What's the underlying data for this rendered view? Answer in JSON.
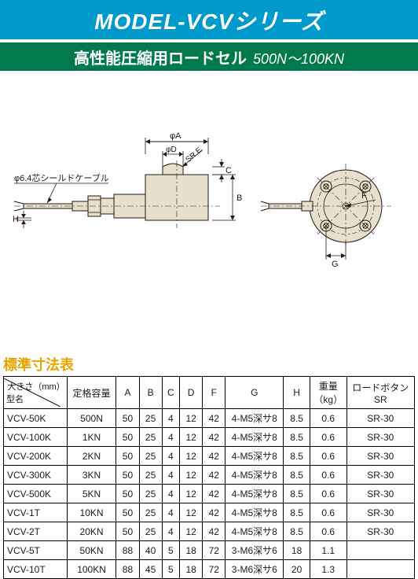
{
  "title": "MODEL-VCVシリーズ",
  "subtitle_main": "高性能圧縮用ロードセル",
  "subtitle_range": "500N〜100KN",
  "section_title": "標準寸法表",
  "diagram": {
    "cable_label": "φ6.4芯シールドケーブル",
    "dims": {
      "A": "φA",
      "D": "φD",
      "E": "SR.E",
      "C": "C",
      "B": "B",
      "H": "H",
      "F": "F",
      "G": "G"
    },
    "body_fill": "#e6e0cc",
    "body_stroke": "#231815"
  },
  "table": {
    "header_diag_top": "大きさ（mm）",
    "header_diag_bot": "型名",
    "columns": [
      "定格容量",
      "A",
      "B",
      "C",
      "D",
      "F",
      "G",
      "H",
      "重量\n（kg）",
      "ロードボタン\nSR"
    ],
    "rows": [
      [
        "VCV-50K",
        "500N",
        "50",
        "25",
        "4",
        "12",
        "42",
        "4-M5深サ8",
        "8.5",
        "0.6",
        "SR-30"
      ],
      [
        "VCV-100K",
        "1KN",
        "50",
        "25",
        "4",
        "12",
        "42",
        "4-M5深サ8",
        "8.5",
        "0.6",
        "SR-30"
      ],
      [
        "VCV-200K",
        "2KN",
        "50",
        "25",
        "4",
        "12",
        "42",
        "4-M5深サ8",
        "8.5",
        "0.6",
        "SR-30"
      ],
      [
        "VCV-300K",
        "3KN",
        "50",
        "25",
        "4",
        "12",
        "42",
        "4-M5深サ8",
        "8.5",
        "0.6",
        "SR-30"
      ],
      [
        "VCV-500K",
        "5KN",
        "50",
        "25",
        "4",
        "12",
        "42",
        "4-M5深サ8",
        "8.5",
        "0.6",
        "SR-30"
      ],
      [
        "VCV-1T",
        "10KN",
        "50",
        "25",
        "4",
        "12",
        "42",
        "4-M5深サ8",
        "8.5",
        "0.6",
        "SR-30"
      ],
      [
        "VCV-2T",
        "20KN",
        "50",
        "25",
        "4",
        "12",
        "42",
        "4-M5深サ8",
        "8.5",
        "0.6",
        "SR-30"
      ],
      [
        "VCV-5T",
        "50KN",
        "88",
        "40",
        "5",
        "18",
        "72",
        "3-M6深サ6",
        "18",
        "1.1",
        ""
      ],
      [
        "VCV-10T",
        "100KN",
        "88",
        "45",
        "5",
        "18",
        "72",
        "3-M6深サ6",
        "20",
        "1.3",
        ""
      ]
    ]
  }
}
